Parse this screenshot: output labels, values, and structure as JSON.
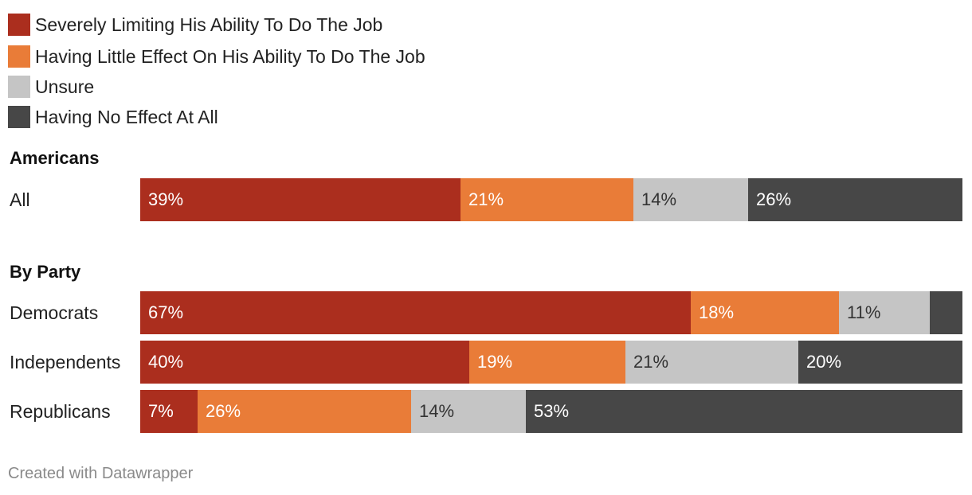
{
  "legend": [
    {
      "label": "Severely Limiting His Ability To Do The Job",
      "color": "#ab2e1e"
    },
    {
      "label": "Having Little Effect On His Ability To Do The Job",
      "color": "#e97c38"
    },
    {
      "label": "Unsure",
      "color": "#c5c5c5"
    },
    {
      "label": "Having No Effect At All",
      "color": "#474747"
    }
  ],
  "chart_data": {
    "type": "bar",
    "orientation": "horizontal",
    "stacked": true,
    "series": [
      {
        "name": "Severely Limiting His Ability To Do The Job",
        "color": "#ab2e1e",
        "label_color": "#ffffff"
      },
      {
        "name": "Having Little Effect On His Ability To Do The Job",
        "color": "#e97c38",
        "label_color": "#ffffff"
      },
      {
        "name": "Unsure",
        "color": "#c5c5c5",
        "label_color": "#333333"
      },
      {
        "name": "Having No Effect At All",
        "color": "#474747",
        "label_color": "#ffffff"
      }
    ],
    "groups": [
      {
        "title": "Americans",
        "rows": [
          {
            "label": "All",
            "values": [
              39,
              21,
              14,
              26
            ],
            "value_labels": [
              "39%",
              "21%",
              "14%",
              "26%"
            ]
          }
        ]
      },
      {
        "title": "By Party",
        "rows": [
          {
            "label": "Democrats",
            "values": [
              67,
              18,
              11,
              4
            ],
            "value_labels": [
              "67%",
              "18%",
              "11%",
              ""
            ]
          },
          {
            "label": "Independents",
            "values": [
              40,
              19,
              21,
              20
            ],
            "value_labels": [
              "40%",
              "19%",
              "21%",
              "20%"
            ]
          },
          {
            "label": "Republicans",
            "values": [
              7,
              26,
              14,
              53
            ],
            "value_labels": [
              "7%",
              "26%",
              "14%",
              "53%"
            ]
          }
        ]
      }
    ]
  },
  "footer": "Created with Datawrapper"
}
